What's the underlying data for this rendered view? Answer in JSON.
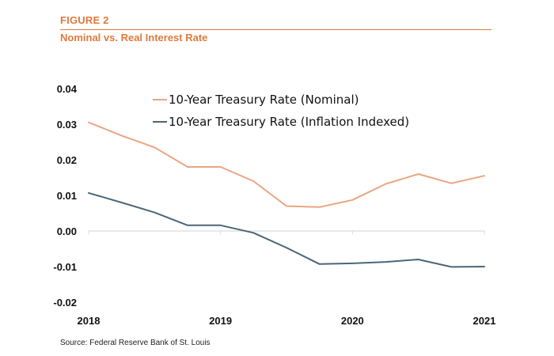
{
  "header": {
    "figure_label": "FIGURE 2",
    "title": "Nominal vs. Real Interest Rate"
  },
  "source": "Source: Federal Reserve  Bank of St. Louis",
  "colors": {
    "accent": "#e07a3c",
    "nominal": "#eaa582",
    "real": "#4a6679",
    "axis": "#d9d9d9"
  },
  "chart_data": {
    "type": "line",
    "title": "",
    "xlabel": "",
    "ylabel": "",
    "xlim": [
      2018,
      2021
    ],
    "ylim": [
      -0.02,
      0.04
    ],
    "x_ticks": [
      {
        "value": 2018,
        "label": "2018"
      },
      {
        "value": 2019,
        "label": "2019"
      },
      {
        "value": 2020,
        "label": "2020"
      },
      {
        "value": 2021,
        "label": "2021"
      }
    ],
    "y_ticks": [
      {
        "value": 0.04,
        "label": "0.04"
      },
      {
        "value": 0.03,
        "label": "0.03"
      },
      {
        "value": 0.02,
        "label": "0.02"
      },
      {
        "value": 0.01,
        "label": "0.01"
      },
      {
        "value": 0.0,
        "label": "0.00"
      },
      {
        "value": -0.01,
        "label": "-0.01"
      },
      {
        "value": -0.02,
        "label": "-0.02"
      }
    ],
    "grid": false,
    "legend_position": "top",
    "x": [
      2018.0,
      2018.25,
      2018.5,
      2018.75,
      2019.0,
      2019.25,
      2019.5,
      2019.75,
      2020.0,
      2020.25,
      2020.5,
      2020.75,
      2021.0
    ],
    "series": [
      {
        "name": "10-Year Treasury Rate (Nominal)",
        "color": "#eaa582",
        "values": [
          0.0305,
          0.0268,
          0.0235,
          0.018,
          0.018,
          0.014,
          0.007,
          0.0067,
          0.0087,
          0.0132,
          0.016,
          0.0134,
          0.0155
        ]
      },
      {
        "name": "10-Year Treasury Rate (Inflation Indexed)",
        "color": "#4a6679",
        "values": [
          0.0107,
          0.008,
          0.0052,
          0.0016,
          0.0016,
          -0.0005,
          -0.0047,
          -0.0093,
          -0.0091,
          -0.0087,
          -0.008,
          -0.0101,
          -0.01
        ]
      }
    ]
  }
}
